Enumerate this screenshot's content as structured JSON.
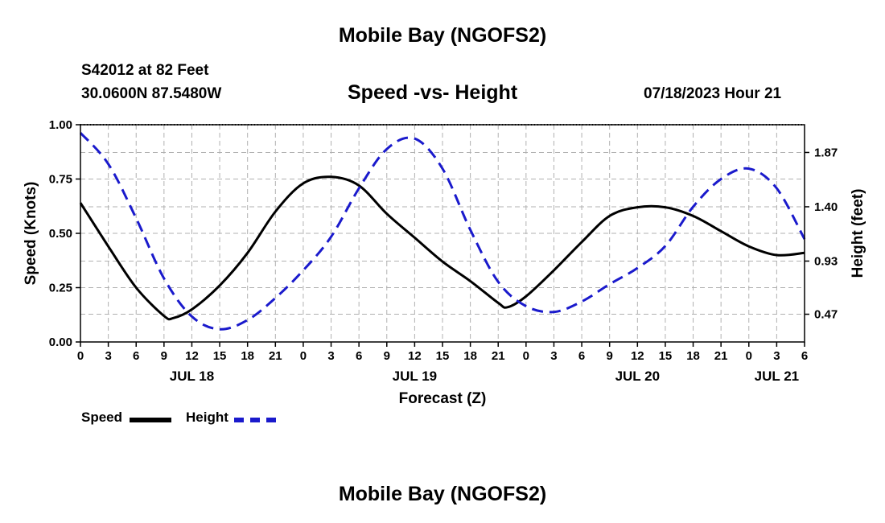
{
  "page": {
    "title": "Mobile Bay (NGOFS2)",
    "title_bottom": "Mobile Bay (NGOFS2)",
    "station": "S42012 at 82 Feet",
    "coords": "30.0600N  87.5480W",
    "subtitle": "Speed -vs- Height",
    "datetime": "07/18/2023 Hour 21"
  },
  "legend": {
    "speed_label": "Speed",
    "height_label": "Height",
    "speed_color": "#000000",
    "height_color": "#1a1acc"
  },
  "chart_data": {
    "type": "line",
    "title": "Speed -vs- Height",
    "xlabel": "Forecast (Z)",
    "ylabel": "Speed (Knots)",
    "y2label": "Height (feet)",
    "xlim": [
      0,
      78
    ],
    "ylim": [
      0,
      1
    ],
    "y2lim": [
      0.23,
      2.11
    ],
    "x_ticks": [
      0,
      3,
      6,
      9,
      12,
      15,
      18,
      21,
      24,
      27,
      30,
      33,
      36,
      39,
      42,
      45,
      48,
      51,
      54,
      57,
      60,
      63,
      66,
      69,
      72,
      75,
      78
    ],
    "x_tick_labels": [
      "0",
      "3",
      "6",
      "9",
      "12",
      "15",
      "18",
      "21",
      "0",
      "3",
      "6",
      "9",
      "12",
      "15",
      "18",
      "21",
      "0",
      "3",
      "6",
      "9",
      "12",
      "15",
      "18",
      "21",
      "0",
      "3",
      "6"
    ],
    "date_labels": [
      {
        "x": 12,
        "label": "JUL 18"
      },
      {
        "x": 36,
        "label": "JUL 19"
      },
      {
        "x": 60,
        "label": "JUL 20"
      },
      {
        "x": 75,
        "label": "JUL 21"
      }
    ],
    "y_ticks": [
      0,
      0.25,
      0.5,
      0.75,
      1.0
    ],
    "y_tick_labels": [
      "0.00",
      "0.25",
      "0.50",
      "0.75",
      "1.00"
    ],
    "y2_ticks": [
      0.47,
      0.93,
      1.4,
      1.87
    ],
    "y2_tick_labels": [
      "0.47",
      "0.93",
      "1.40",
      "1.87"
    ],
    "grid": true,
    "series": [
      {
        "name": "Speed",
        "axis": "left",
        "style": "solid",
        "color": "#000000",
        "x": [
          0,
          3,
          6,
          9,
          10,
          12,
          15,
          18,
          21,
          24,
          27,
          30,
          33,
          36,
          39,
          42,
          45,
          46,
          48,
          51,
          54,
          57,
          60,
          63,
          66,
          69,
          72,
          75,
          78
        ],
        "y": [
          0.64,
          0.44,
          0.25,
          0.12,
          0.11,
          0.15,
          0.26,
          0.41,
          0.6,
          0.73,
          0.76,
          0.72,
          0.59,
          0.48,
          0.37,
          0.28,
          0.18,
          0.16,
          0.21,
          0.33,
          0.46,
          0.58,
          0.62,
          0.62,
          0.58,
          0.51,
          0.44,
          0.4,
          0.41
        ]
      },
      {
        "name": "Height",
        "axis": "right",
        "style": "dashed",
        "color": "#1a1acc",
        "x": [
          0,
          3,
          6,
          9,
          12,
          15,
          18,
          21,
          24,
          27,
          30,
          33,
          36,
          39,
          42,
          45,
          48,
          51,
          54,
          57,
          60,
          63,
          66,
          69,
          72,
          75,
          78
        ],
        "y": [
          2.04,
          1.77,
          1.3,
          0.78,
          0.45,
          0.34,
          0.42,
          0.61,
          0.85,
          1.14,
          1.56,
          1.9,
          1.99,
          1.73,
          1.2,
          0.75,
          0.54,
          0.49,
          0.58,
          0.73,
          0.87,
          1.06,
          1.4,
          1.64,
          1.73,
          1.56,
          1.12
        ]
      }
    ]
  }
}
